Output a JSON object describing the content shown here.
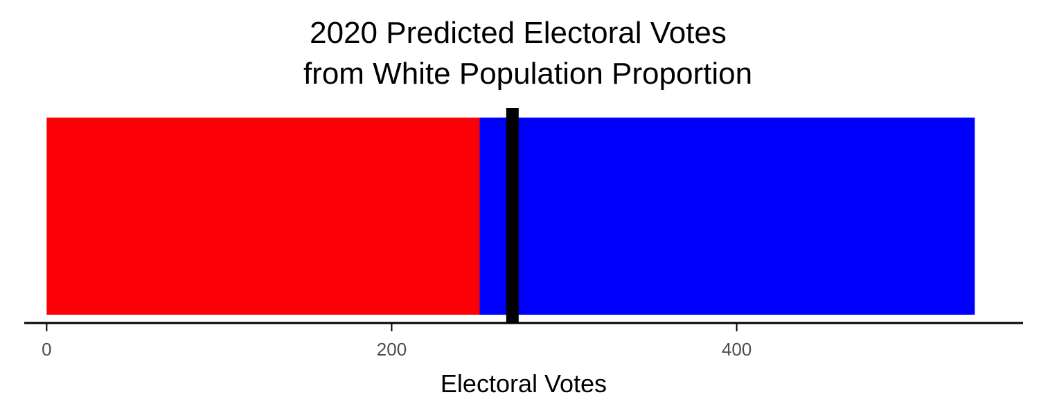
{
  "chart_data": {
    "type": "bar",
    "orientation": "horizontal",
    "stacked": true,
    "title": [
      "2020 Predicted Electoral Votes",
      "from White Population Proportion"
    ],
    "xlabel": "Electoral Votes",
    "ylabel": "",
    "xlim": [
      -13,
      566
    ],
    "xticks": [
      0,
      200,
      400
    ],
    "grid": false,
    "legend": "none",
    "series": [
      {
        "value": 251,
        "color": "#fb0006"
      },
      {
        "value": 287,
        "color": "#0000ff"
      }
    ],
    "reference_line": {
      "value": 270,
      "color": "#000000"
    }
  }
}
